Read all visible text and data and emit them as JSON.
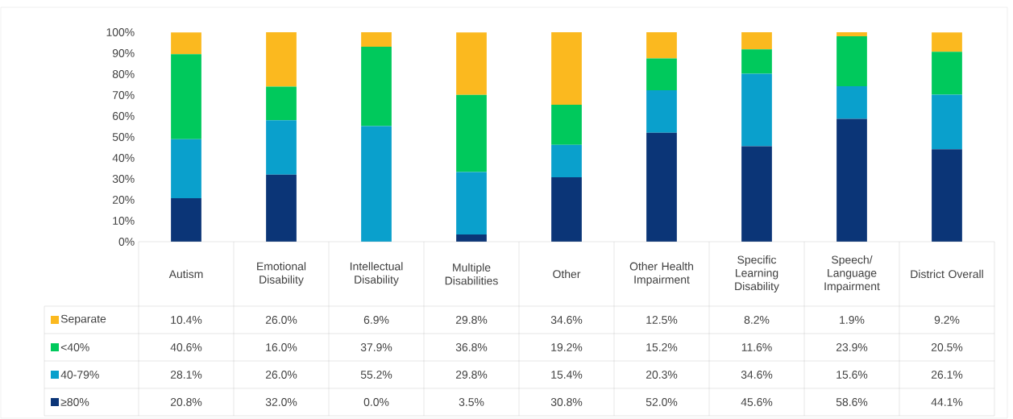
{
  "chart_data": {
    "type": "bar",
    "stacked": true,
    "legend": "bottom",
    "categories": [
      "Autism",
      "Emotional Disability",
      "Intellectual Disability",
      "Multiple Disabilities",
      "Other",
      "Other Health Impairment",
      "Specific Learning Disability",
      "Speech/ Language Impairment",
      "District Overall"
    ],
    "series": [
      {
        "name": "≥80%",
        "color": "#0b3577",
        "values": [
          20.8,
          32.0,
          0.0,
          3.5,
          30.8,
          52.0,
          45.6,
          58.6,
          44.1
        ],
        "value_labels": [
          "20.8%",
          "32.0%",
          "0.0%",
          "3.5%",
          "30.8%",
          "52.0%",
          "45.6%",
          "58.6%",
          "44.1%"
        ]
      },
      {
        "name": "40-79%",
        "color": "#0aa0cc",
        "values": [
          28.1,
          26.0,
          55.2,
          29.8,
          15.4,
          20.3,
          34.6,
          15.6,
          26.1
        ],
        "value_labels": [
          "28.1%",
          "26.0%",
          "55.2%",
          "29.8%",
          "15.4%",
          "20.3%",
          "34.6%",
          "15.6%",
          "26.1%"
        ]
      },
      {
        "name": "<40%",
        "color": "#00c95c",
        "values": [
          40.6,
          16.0,
          37.9,
          36.8,
          19.2,
          15.2,
          11.6,
          23.9,
          20.5
        ],
        "value_labels": [
          "40.6%",
          "16.0%",
          "37.9%",
          "36.8%",
          "19.2%",
          "15.2%",
          "11.6%",
          "23.9%",
          "20.5%"
        ]
      },
      {
        "name": "Separate",
        "color": "#fbb91f",
        "values": [
          10.4,
          26.0,
          6.9,
          29.8,
          34.6,
          12.5,
          8.2,
          1.9,
          9.2
        ],
        "value_labels": [
          "10.4%",
          "26.0%",
          "6.9%",
          "29.8%",
          "34.6%",
          "12.5%",
          "8.2%",
          "1.9%",
          "9.2%"
        ]
      }
    ],
    "ylim": [
      0,
      100
    ],
    "yticks": [
      {
        "value": 0,
        "label": "0%"
      },
      {
        "value": 10,
        "label": "10%"
      },
      {
        "value": 20,
        "label": "20%"
      },
      {
        "value": 30,
        "label": "30%"
      },
      {
        "value": 40,
        "label": "40%"
      },
      {
        "value": 50,
        "label": "50%"
      },
      {
        "value": 60,
        "label": "60%"
      },
      {
        "value": 70,
        "label": "70%"
      },
      {
        "value": 80,
        "label": "80%"
      },
      {
        "value": 90,
        "label": "90%"
      },
      {
        "value": 100,
        "label": "100%"
      }
    ]
  }
}
